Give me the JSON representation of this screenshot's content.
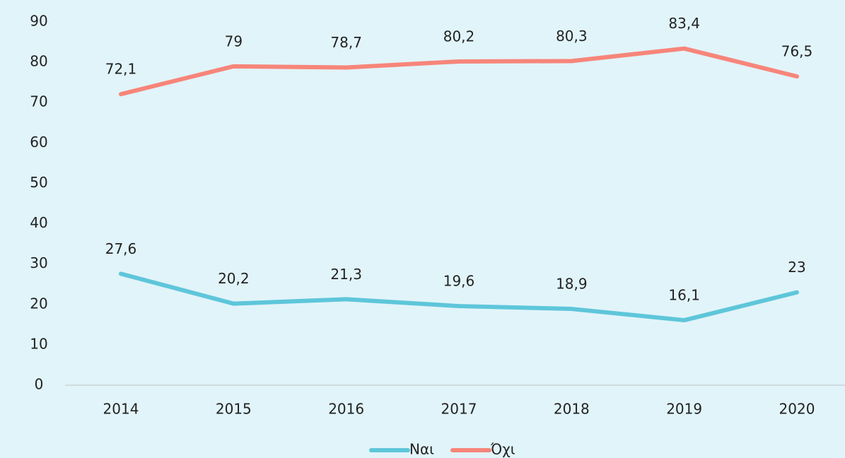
{
  "chart_data": {
    "type": "line",
    "categories": [
      "2014",
      "2015",
      "2016",
      "2017",
      "2018",
      "2019",
      "2020"
    ],
    "series": [
      {
        "name": "Ναι",
        "color": "#5ec6da",
        "values": [
          27.6,
          20.2,
          21.3,
          19.6,
          18.9,
          16.1,
          23
        ],
        "value_labels": [
          "27,6",
          "20,2",
          "21,3",
          "19,6",
          "18,9",
          "16,1",
          "23"
        ]
      },
      {
        "name": "Όχι",
        "color": "#f7857a",
        "values": [
          72.1,
          79,
          78.7,
          80.2,
          80.3,
          83.4,
          76.5
        ],
        "value_labels": [
          "72,1",
          "79",
          "78,7",
          "80,2",
          "80,3",
          "83,4",
          "76,5"
        ]
      }
    ],
    "ylim": [
      0,
      90
    ],
    "yticks": [
      0,
      10,
      20,
      30,
      40,
      50,
      60,
      70,
      80,
      90
    ],
    "grid": false,
    "legend": "bottom"
  }
}
